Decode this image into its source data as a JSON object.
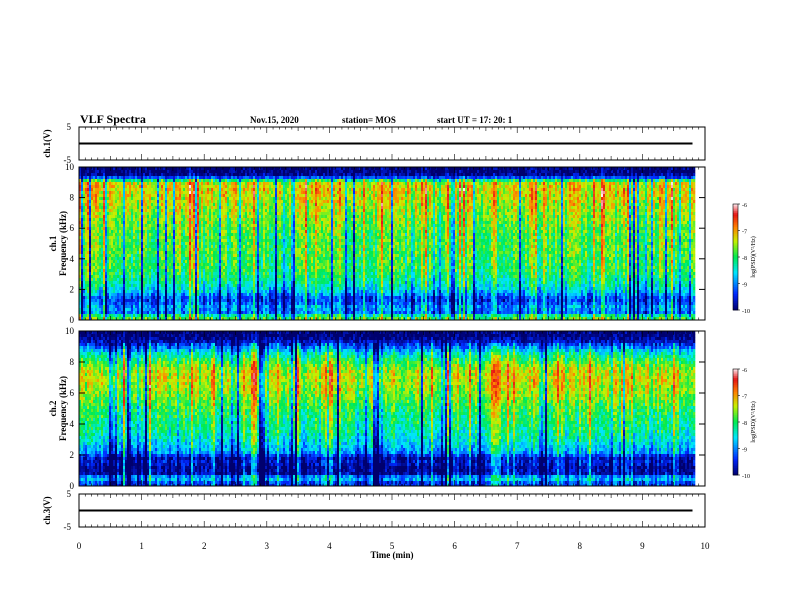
{
  "header": {
    "title": "VLF Spectra",
    "date": "Nov.15, 2020",
    "station": "station= MOS",
    "start": "start  UT  =    17: 20: 1"
  },
  "chart_data": [
    {
      "type": "line",
      "title": "",
      "ylabel": "ch.1(V)",
      "ylim": [
        -5,
        5
      ],
      "yticks": [
        "5",
        "-5"
      ],
      "series": [
        {
          "name": "",
          "x": [
            0,
            9.8
          ],
          "y": [
            0,
            0
          ]
        }
      ]
    },
    {
      "type": "heatmap",
      "ylabel_line1": "ch.1",
      "ylabel_line2": "Frequency (kHz)",
      "ylim": [
        0,
        10
      ],
      "yticks": [
        "0",
        "2",
        "4",
        "6",
        "8",
        "10"
      ],
      "data_xmax": 9.85,
      "colorbar": {
        "label": "log(PSD)(V²/Hz)",
        "ticks": [
          "-6",
          "-7",
          "-8",
          "-9",
          "-10"
        ],
        "range": [
          -10,
          -6
        ]
      },
      "profile_freqs": [
        0.2,
        0.5,
        0.8,
        1.2,
        1.5,
        1.8,
        2.2,
        2.6,
        3,
        3.5,
        4,
        4.5,
        5,
        5.5,
        6,
        6.5,
        7,
        7.5,
        8,
        8.5,
        9,
        9.4,
        9.7
      ],
      "profile_logpsd": [
        -7.9,
        -9.2,
        -8.9,
        -9.4,
        -9.3,
        -8.8,
        -8.5,
        -8.3,
        -8.1,
        -8.0,
        -8.0,
        -7.9,
        -7.9,
        -7.9,
        -7.8,
        -7.7,
        -7.6,
        -7.5,
        -7.4,
        -7.3,
        -7.4,
        -9.8,
        -10
      ]
    },
    {
      "type": "heatmap",
      "ylabel_line1": "ch.2",
      "ylabel_line2": "Frequency (kHz)",
      "ylim": [
        0,
        10
      ],
      "yticks": [
        "0",
        "2",
        "4",
        "6",
        "8",
        "10"
      ],
      "data_xmax": 9.85,
      "colorbar": {
        "label": "log(PSD)(V²/Hz)",
        "ticks": [
          "-6",
          "-7",
          "-8",
          "-9",
          "-10"
        ],
        "range": [
          -10,
          -6
        ]
      },
      "profile_freqs": [
        0.2,
        0.5,
        0.8,
        1.2,
        1.5,
        1.8,
        2.2,
        2.6,
        3,
        3.5,
        4,
        4.5,
        5,
        5.5,
        6,
        6.5,
        7,
        7.5,
        8,
        8.5,
        9,
        9.4,
        9.7
      ],
      "profile_logpsd": [
        -9.4,
        -8.6,
        -9.8,
        -9.9,
        -9.6,
        -9.8,
        -8.9,
        -8.7,
        -8.5,
        -8.3,
        -8.2,
        -8.1,
        -8.0,
        -7.8,
        -7.6,
        -7.5,
        -7.4,
        -7.5,
        -7.9,
        -8.4,
        -9.2,
        -9.8,
        -10
      ]
    },
    {
      "type": "line",
      "title": "",
      "ylabel": "ch.3(V)",
      "ylim": [
        -5,
        5
      ],
      "yticks": [
        "5",
        "-5"
      ],
      "series": [
        {
          "name": "",
          "x": [
            0,
            9.8
          ],
          "y": [
            0,
            0
          ]
        }
      ]
    }
  ],
  "x_axis": {
    "label": "Time (min)",
    "range": [
      0,
      10
    ],
    "ticks": [
      "0",
      "1",
      "2",
      "3",
      "4",
      "5",
      "6",
      "7",
      "8",
      "9",
      "10"
    ]
  }
}
